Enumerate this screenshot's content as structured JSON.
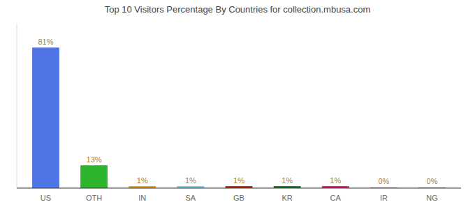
{
  "chart_data": {
    "type": "bar",
    "title": "Top 10 Visitors Percentage By Countries for collection.mbusa.com",
    "categories": [
      "US",
      "OTH",
      "IN",
      "SA",
      "GB",
      "KR",
      "CA",
      "IR",
      "NG"
    ],
    "values": [
      81,
      13,
      1,
      1,
      1,
      1,
      1,
      0.3,
      0.3
    ],
    "value_labels": [
      "81%",
      "13%",
      "1%",
      "1%",
      "1%",
      "1%",
      "1%",
      "0%",
      "0%"
    ],
    "colors": [
      "#4f74e3",
      "#2db52d",
      "#e8a020",
      "#7ecef4",
      "#b03010",
      "#1a7a30",
      "#e0207a",
      "#ffffff",
      "#ffffff"
    ],
    "ylim": [
      0,
      95
    ],
    "grid": false,
    "data_labels": true,
    "tick_labels": "x"
  }
}
